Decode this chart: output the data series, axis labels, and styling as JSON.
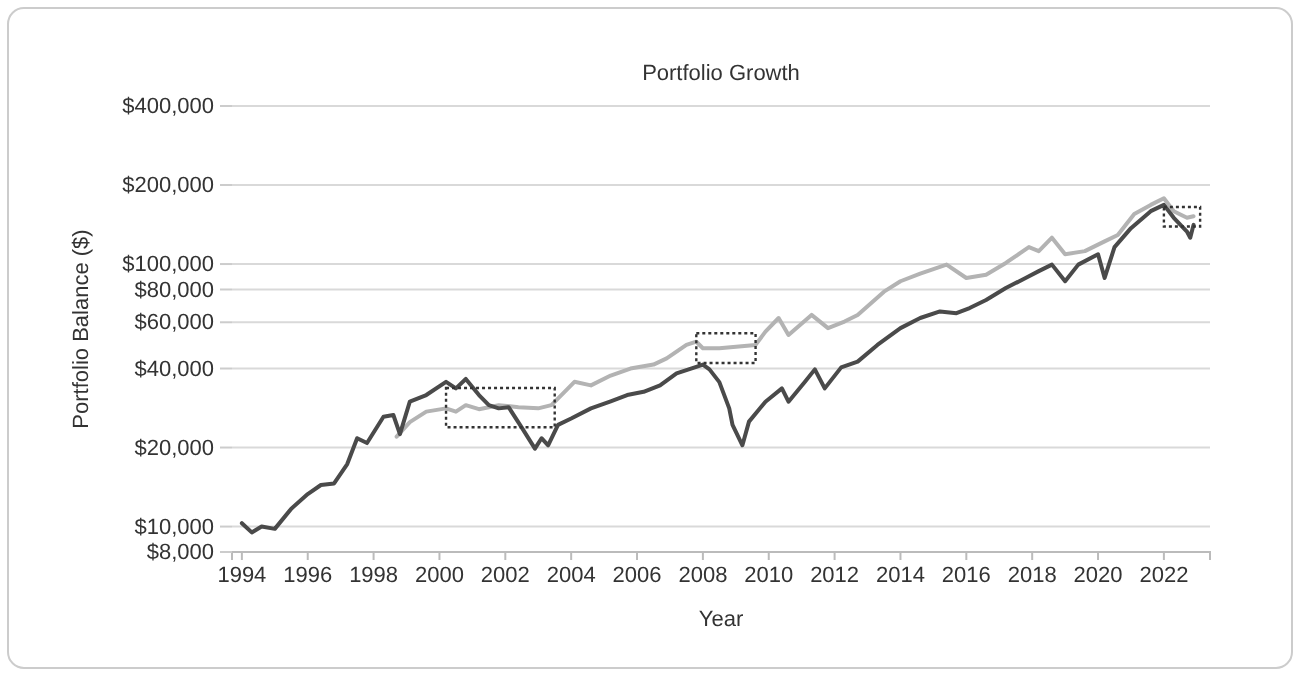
{
  "chart_data": {
    "type": "line",
    "title": "Portfolio Growth",
    "xlabel": "Year",
    "ylabel": "Portfolio Balance ($)",
    "log": "y",
    "grid": "y",
    "marker": "none",
    "line_style": "solid",
    "xlim": [
      1993.7,
      2023.4
    ],
    "xticks": [
      1994,
      1996,
      1998,
      2000,
      2002,
      2004,
      2006,
      2008,
      2010,
      2012,
      2014,
      2016,
      2018,
      2020,
      2022
    ],
    "ylim": [
      8000,
      400000
    ],
    "yticks": [
      {
        "value": 8000,
        "label": "$8,000"
      },
      {
        "value": 10000,
        "label": "$10,000"
      },
      {
        "value": 20000,
        "label": "$20,000"
      },
      {
        "value": 40000,
        "label": "$40,000"
      },
      {
        "value": 60000,
        "label": "$60,000"
      },
      {
        "value": 80000,
        "label": "$80,000"
      },
      {
        "value": 100000,
        "label": "$100,000"
      },
      {
        "value": 200000,
        "label": "$200,000"
      },
      {
        "value": 400000,
        "label": "$400,000"
      }
    ],
    "series": [
      {
        "color": "#b3b3b3",
        "x": [
          1998.7,
          1999.1,
          1999.6,
          2000.2,
          2000.5,
          2000.8,
          2001.2,
          2001.8,
          2002.4,
          2003.0,
          2003.4,
          2003.8,
          2004.1,
          2004.6,
          2005.2,
          2005.8,
          2006.5,
          2006.9,
          2007.5,
          2007.8,
          2008.0,
          2008.5,
          2009.6,
          2009.9,
          2010.3,
          2010.6,
          2011.3,
          2011.8,
          2012.3,
          2012.7,
          2013.5,
          2014.0,
          2014.6,
          2015.4,
          2016.0,
          2016.6,
          2017.2,
          2017.9,
          2018.2,
          2018.6,
          2019.0,
          2019.6,
          2020.2,
          2020.6,
          2021.1,
          2021.6,
          2022.0,
          2022.3,
          2022.7,
          2022.9
        ],
        "values": [
          22000,
          25000,
          27400,
          28200,
          27400,
          29000,
          28000,
          29000,
          28500,
          28200,
          29000,
          32600,
          35600,
          34500,
          37600,
          40000,
          41400,
          43700,
          49200,
          50600,
          47800,
          47800,
          49200,
          55300,
          62300,
          53700,
          64000,
          57000,
          60400,
          64000,
          78500,
          86000,
          92000,
          99500,
          88500,
          91000,
          101000,
          116000,
          112000,
          126000,
          109000,
          112000,
          122000,
          129000,
          155000,
          168000,
          178000,
          159000,
          150000,
          152000
        ]
      },
      {
        "color": "#4a4a4a",
        "x": [
          1994.0,
          1994.3,
          1994.6,
          1995.0,
          1995.5,
          1996.0,
          1996.4,
          1996.8,
          1997.2,
          1997.5,
          1997.8,
          1998.3,
          1998.6,
          1998.8,
          1999.1,
          1999.6,
          2000.2,
          2000.5,
          2000.8,
          2001.2,
          2001.5,
          2001.8,
          2002.1,
          2002.5,
          2002.9,
          2003.1,
          2003.3,
          2003.6,
          2004.0,
          2004.6,
          2005.2,
          2005.7,
          2006.2,
          2006.7,
          2007.2,
          2007.8,
          2008.0,
          2008.2,
          2008.5,
          2008.8,
          2008.9,
          2009.2,
          2009.4,
          2009.9,
          2010.4,
          2010.6,
          2011.1,
          2011.4,
          2011.7,
          2012.2,
          2012.7,
          2013.3,
          2014.0,
          2014.6,
          2015.2,
          2015.7,
          2016.1,
          2016.6,
          2017.2,
          2017.8,
          2018.2,
          2018.6,
          2019.0,
          2019.4,
          2020.0,
          2020.2,
          2020.5,
          2021.0,
          2021.6,
          2022.0,
          2022.3,
          2022.7,
          2022.8,
          2022.9
        ],
        "values": [
          10300,
          9500,
          10000,
          9800,
          11700,
          13300,
          14400,
          14600,
          17300,
          21700,
          20800,
          26200,
          26600,
          22500,
          29900,
          31700,
          35600,
          33600,
          36500,
          31700,
          29000,
          28200,
          28500,
          23800,
          19800,
          21700,
          20400,
          24400,
          25800,
          28200,
          30000,
          31700,
          32600,
          34500,
          38300,
          40600,
          41400,
          39700,
          35500,
          28200,
          24400,
          20400,
          25100,
          29900,
          33600,
          29900,
          35600,
          39700,
          33600,
          40400,
          42500,
          49200,
          57000,
          62300,
          66000,
          65000,
          68000,
          73000,
          81000,
          88500,
          94000,
          99500,
          86000,
          99500,
          109000,
          88500,
          116000,
          137000,
          159000,
          168000,
          150000,
          133000,
          126000,
          141000
        ]
      }
    ]
  }
}
